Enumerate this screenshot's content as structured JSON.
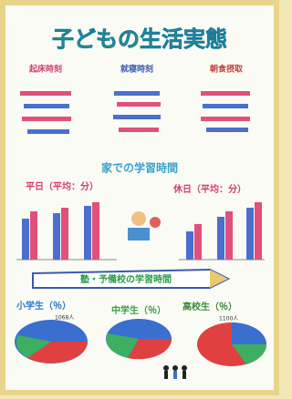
{
  "header": {
    "title": "子どもの生活実態"
  },
  "top": {
    "labels": [
      "起床時刻",
      "就寝時刻",
      "朝食摂取"
    ]
  },
  "middle": {
    "title": "家での学習時間",
    "weekday": "平日（平均：分）",
    "holiday": "休日（平均：分）"
  },
  "banner": {
    "text": "塾・予備校の学習時間"
  },
  "pies": [
    {
      "label": "小学生（％）",
      "count": "1068人"
    },
    {
      "label": "中学生（％）"
    },
    {
      "label": "高校生（％）",
      "count": "1100人"
    }
  ]
}
